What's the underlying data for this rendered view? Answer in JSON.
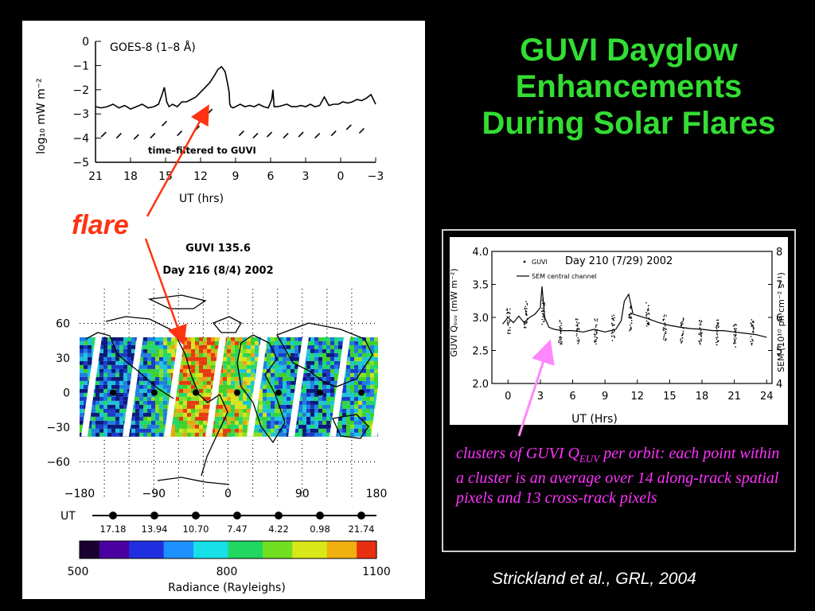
{
  "slide": {
    "title": "GUVI Dayglow Enhancements During Solar Flares",
    "flare_label": "flare",
    "caption_part1": "clusters of GUVI Q",
    "caption_sub": "EUV",
    "caption_part2": " per orbit: each point within a cluster is an average over 14 along-track spatial pixels and 13 cross-track pixels",
    "citation": "Strickland et al., GRL, 2004",
    "colors": {
      "title": "#33dd33",
      "caption": "#ff33ff",
      "flare": "#ff3311",
      "arrow_pink": "#ff88ff"
    }
  },
  "chart_data": [
    {
      "type": "line",
      "title": "GOES-8 (1–8 Å)",
      "ylabel": "log₁₀ mW m⁻²",
      "xlabel": "UT (hrs)",
      "annotation": "time–filtered to GUVI",
      "xlim": [
        21,
        -3
      ],
      "ylim": [
        -5,
        0
      ],
      "xticks": [
        21,
        18,
        15,
        12,
        9,
        6,
        3,
        0,
        -3
      ],
      "xtick_labels": [
        "21",
        "18",
        "15",
        "12",
        "9",
        "6",
        "3",
        "0",
        "−3"
      ],
      "yticks": [
        0,
        -1,
        -2,
        -3,
        -4,
        -5
      ],
      "ytick_labels": [
        "0",
        "−1",
        "−2",
        "−3",
        "−4",
        "−5"
      ],
      "series": [
        {
          "x": [
            21,
            20.5,
            20,
            19.5,
            19,
            18.5,
            18,
            17.5,
            17,
            16.5,
            16,
            15.6,
            15.3,
            15.1,
            14.9,
            14.7,
            14.4,
            14.0,
            13.6,
            13.2,
            12.8,
            12.4,
            12.0,
            11.6,
            11.2,
            10.8,
            10.5,
            10.2,
            9.9,
            9.7,
            9.55,
            9.5,
            9.4,
            9.2,
            9.0,
            8.6,
            8.2,
            7.8,
            7.4,
            7.0,
            6.6,
            6.2,
            5.9,
            5.8,
            5.7,
            5.4,
            5.0,
            4.6,
            4.2,
            3.8,
            3.4,
            3.0,
            2.6,
            2.2,
            1.8,
            1.4,
            1.0,
            0.6,
            0.2,
            -0.2,
            -0.6,
            -1.0,
            -1.4,
            -1.8,
            -2.2,
            -2.6,
            -3.0
          ],
          "y": [
            -2.7,
            -2.75,
            -2.7,
            -2.6,
            -2.75,
            -2.65,
            -2.8,
            -2.7,
            -2.6,
            -2.75,
            -2.7,
            -2.6,
            -2.2,
            -1.9,
            -2.5,
            -2.7,
            -2.6,
            -2.7,
            -2.5,
            -2.5,
            -2.4,
            -2.3,
            -2.1,
            -1.9,
            -1.7,
            -1.4,
            -1.15,
            -1.05,
            -1.25,
            -1.7,
            -2.1,
            -2.6,
            -2.7,
            -2.75,
            -2.7,
            -2.6,
            -2.7,
            -2.65,
            -2.7,
            -2.6,
            -2.7,
            -2.75,
            -2.4,
            -2.0,
            -2.7,
            -2.7,
            -2.65,
            -2.6,
            -2.7,
            -2.7,
            -2.65,
            -2.7,
            -2.6,
            -2.7,
            -2.65,
            -2.3,
            -2.65,
            -2.6,
            -2.6,
            -2.5,
            -2.55,
            -2.5,
            -2.4,
            -2.45,
            -2.35,
            -2.2,
            -2.6
          ]
        }
      ]
    },
    {
      "type": "heatmap",
      "title": "GUVI 135.6",
      "subtitle": "Day 216 (8/4) 2002",
      "xlim": [
        -180,
        180
      ],
      "ylim": [
        -90,
        90
      ],
      "xticks": [
        -180,
        -90,
        0,
        90,
        180
      ],
      "xtick_labels": [
        "−180",
        "−90",
        "0",
        "90",
        "180"
      ],
      "yticks": [
        60,
        30,
        0,
        -30,
        -60
      ],
      "ytick_labels": [
        "60",
        "30",
        "0",
        "−30",
        "−60"
      ],
      "ut_label": "UT",
      "orbit_ut": [
        "17.18",
        "13.94",
        "10.70",
        "7.47",
        "4.22",
        "0.98",
        "21.74"
      ],
      "colorbar": {
        "min": 500,
        "mid": 800,
        "max": 1100,
        "tick_labels": [
          "500",
          "800",
          "1100"
        ],
        "label": "Radiance (Rayleighs)"
      }
    },
    {
      "type": "scatter",
      "title": "Day 210 (7/29) 2002",
      "xlabel": "UT (Hrs)",
      "ylabel": "GUVI Qₑᵤᵥ (mW m⁻²)",
      "y2label": "SEM (10¹⁰ ph cm⁻² s⁻¹)",
      "xlim": [
        -1.5,
        24.5
      ],
      "ylim": [
        2.0,
        4.0
      ],
      "y2lim": [
        4,
        8
      ],
      "xticks": [
        0,
        3,
        6,
        9,
        12,
        15,
        18,
        21,
        24
      ],
      "xtick_labels": [
        "0",
        "3",
        "6",
        "9",
        "12",
        "15",
        "18",
        "21",
        "24"
      ],
      "yticks": [
        2.0,
        2.5,
        3.0,
        3.5,
        4.0
      ],
      "ytick_labels": [
        "2.0",
        "2.5",
        "3.0",
        "3.5",
        "4.0"
      ],
      "y2ticks": [
        4,
        5,
        6,
        7,
        8
      ],
      "y2tick_labels": [
        "4",
        "5",
        "6",
        "7",
        "8"
      ],
      "legend": [
        "GUVI",
        "SEM central channel"
      ],
      "series": [
        {
          "name": "GUVI",
          "clusters": [
            {
              "x": 0.0,
              "y": 2.95
            },
            {
              "x": 1.6,
              "y": 3.05
            },
            {
              "x": 3.2,
              "y": 3.1
            },
            {
              "x": 4.8,
              "y": 2.78
            },
            {
              "x": 6.4,
              "y": 2.8
            },
            {
              "x": 8.1,
              "y": 2.8
            },
            {
              "x": 9.7,
              "y": 2.85
            },
            {
              "x": 11.3,
              "y": 3.0
            },
            {
              "x": 12.9,
              "y": 3.05
            },
            {
              "x": 14.5,
              "y": 2.85
            },
            {
              "x": 16.1,
              "y": 2.82
            },
            {
              "x": 17.8,
              "y": 2.8
            },
            {
              "x": 19.4,
              "y": 2.78
            },
            {
              "x": 21.0,
              "y": 2.75
            },
            {
              "x": 22.6,
              "y": 2.78
            }
          ]
        },
        {
          "name": "SEM central channel",
          "x": [
            -0.5,
            0,
            0.5,
            1,
            1.5,
            2,
            2.5,
            3.0,
            3.15,
            3.4,
            3.8,
            4.3,
            5,
            6,
            7,
            8,
            9,
            10,
            10.5,
            10.8,
            11.2,
            11.6,
            12.2,
            13,
            14,
            15,
            16,
            17,
            18,
            19,
            20,
            21,
            22,
            23,
            24
          ],
          "y": [
            2.9,
            3.0,
            2.92,
            3.02,
            2.92,
            3.0,
            3.05,
            3.15,
            3.47,
            3.0,
            2.85,
            2.82,
            2.8,
            2.8,
            2.78,
            2.82,
            2.78,
            2.82,
            2.95,
            3.25,
            3.35,
            3.05,
            3.02,
            2.98,
            2.92,
            2.88,
            2.85,
            2.83,
            2.82,
            2.8,
            2.8,
            2.78,
            2.76,
            2.74,
            2.7
          ]
        }
      ]
    }
  ]
}
